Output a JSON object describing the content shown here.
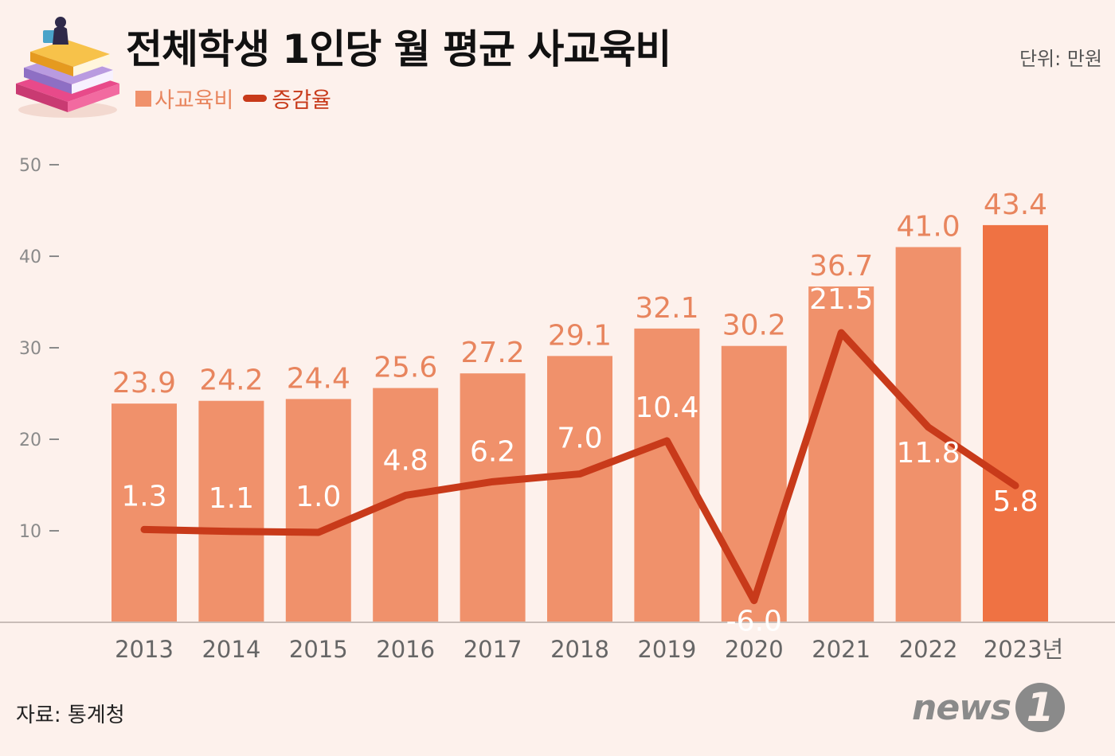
{
  "title": "전체학생 1인당 월 평균 사교육비",
  "unit_label": "단위: 만원",
  "legend": {
    "bar_label": "사교육비",
    "line_label": "증감율"
  },
  "source": "자료: 통계청",
  "logo": {
    "text": "news",
    "mark": "1"
  },
  "icons": {
    "header": "books-stack-icon"
  },
  "colors": {
    "bar": "#f0916b",
    "bar_highlight": "#ef7243",
    "line": "#c83a1a",
    "bar_value_text": "#e8855e",
    "background": "#fdf1ec"
  },
  "chart_data": {
    "type": "bar",
    "categories": [
      "2013",
      "2014",
      "2015",
      "2016",
      "2017",
      "2018",
      "2019",
      "2020",
      "2021",
      "2022",
      "2023년"
    ],
    "series": [
      {
        "name": "사교육비",
        "type": "bar",
        "values": [
          23.9,
          24.2,
          24.4,
          25.6,
          27.2,
          29.1,
          32.1,
          30.2,
          36.7,
          41.0,
          43.4
        ],
        "labels": [
          "23.9",
          "24.2",
          "24.4",
          "25.6",
          "27.2",
          "29.1",
          "32.1",
          "30.2",
          "36.7",
          "41.0",
          "43.4"
        ]
      },
      {
        "name": "증감율",
        "type": "line",
        "values": [
          1.3,
          1.1,
          1.0,
          4.8,
          6.2,
          7.0,
          10.4,
          -6.0,
          21.5,
          11.8,
          5.8
        ],
        "labels": [
          "1.3",
          "1.1",
          "1.0",
          "4.8",
          "6.2",
          "7.0",
          "10.4",
          "-6.0",
          "21.5",
          "11.8",
          "5.8"
        ]
      }
    ],
    "y_ticks": [
      "10",
      "20",
      "30",
      "40",
      "50"
    ],
    "ylim": [
      5,
      50
    ],
    "highlight_index": 10,
    "grid": false,
    "legend_position": "top-left"
  }
}
